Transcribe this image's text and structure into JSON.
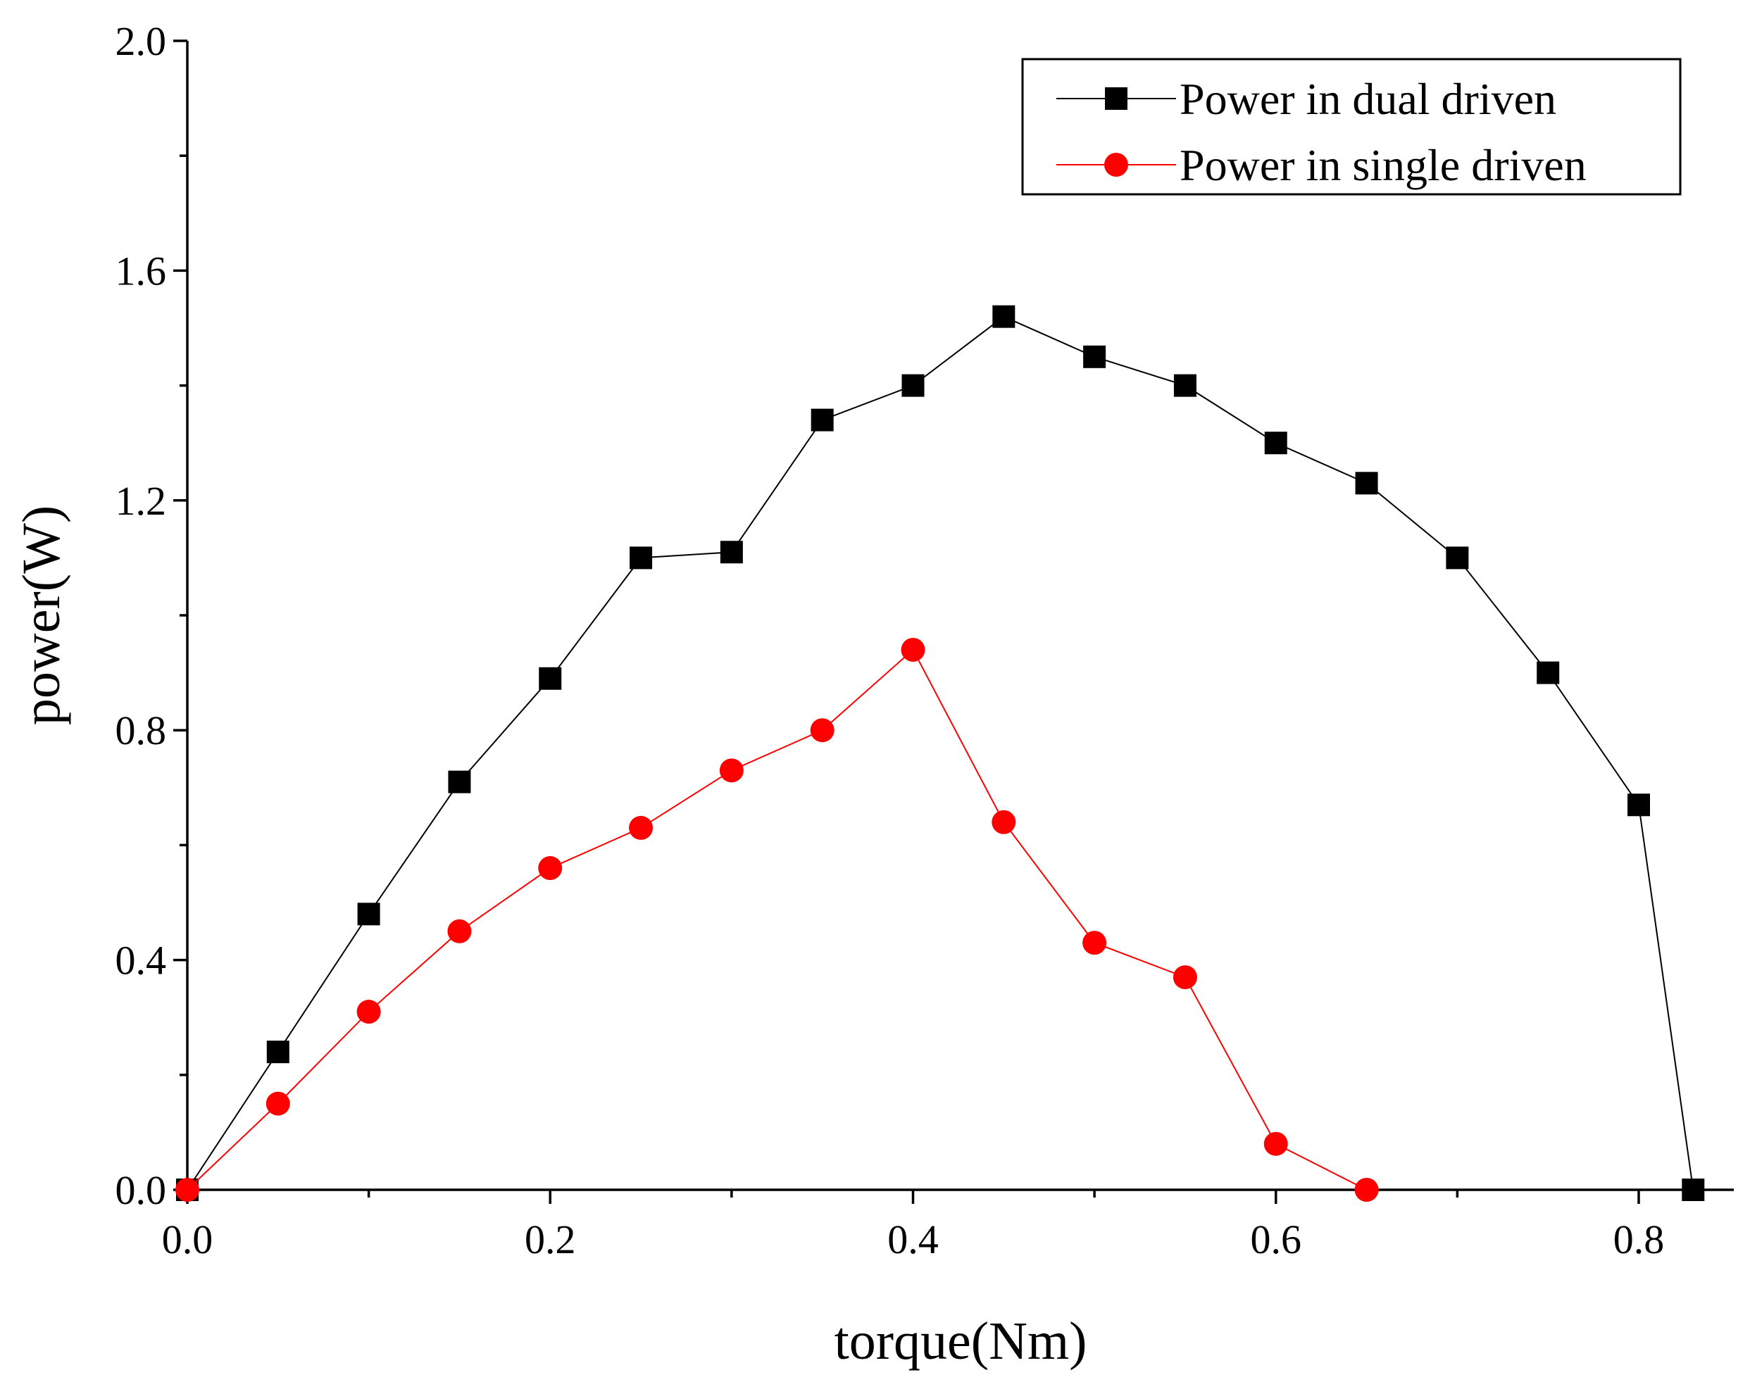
{
  "chart_data": {
    "type": "line",
    "title": "",
    "xlabel": "torque(Nm)",
    "ylabel": "power(W)",
    "xlim": [
      0.0,
      0.85
    ],
    "ylim": [
      0.0,
      2.0
    ],
    "x_ticks": [
      "0.0",
      "0.2",
      "0.4",
      "0.6",
      "0.8"
    ],
    "x_tick_values": [
      0.0,
      0.2,
      0.4,
      0.6,
      0.8
    ],
    "y_ticks": [
      "0.0",
      "0.4",
      "0.8",
      "1.2",
      "1.6",
      "2.0"
    ],
    "y_tick_values": [
      0.0,
      0.4,
      0.8,
      1.2,
      1.6,
      2.0
    ],
    "legend_position": "top-right",
    "series": [
      {
        "name": "Power in dual driven",
        "color": "#000000",
        "marker": "square",
        "x": [
          0.0,
          0.05,
          0.1,
          0.15,
          0.2,
          0.25,
          0.3,
          0.35,
          0.4,
          0.45,
          0.5,
          0.55,
          0.6,
          0.65,
          0.7,
          0.75,
          0.8,
          0.83
        ],
        "y": [
          0.0,
          0.24,
          0.48,
          0.71,
          0.89,
          1.1,
          1.11,
          1.34,
          1.4,
          1.52,
          1.45,
          1.4,
          1.3,
          1.23,
          1.1,
          0.9,
          0.67,
          0.0
        ]
      },
      {
        "name": "Power in single driven",
        "color": "#ff0000",
        "marker": "circle",
        "x": [
          0.0,
          0.05,
          0.1,
          0.15,
          0.2,
          0.25,
          0.3,
          0.35,
          0.4,
          0.45,
          0.5,
          0.55,
          0.6,
          0.65
        ],
        "y": [
          0.0,
          0.15,
          0.31,
          0.45,
          0.56,
          0.63,
          0.73,
          0.8,
          0.94,
          0.64,
          0.43,
          0.37,
          0.08,
          0.0
        ]
      }
    ]
  }
}
